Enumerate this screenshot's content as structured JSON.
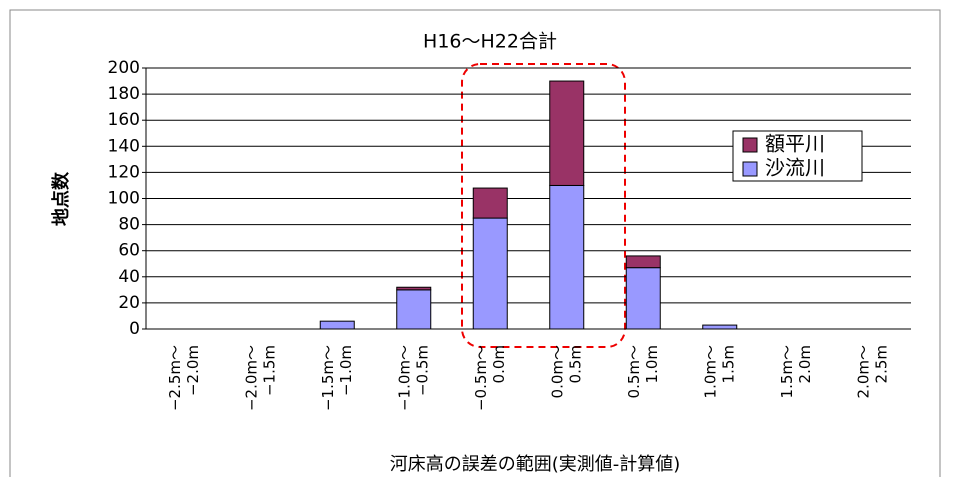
{
  "chart_data": {
    "type": "stacked_bar",
    "title": "H16～H22合計",
    "y_label": "地点数",
    "x_label": "河床高の誤差の範囲(実測値-計算値)",
    "categories": [
      [
        "−2.5m～",
        "−2.0m"
      ],
      [
        "−2.0m～",
        "−1.5m"
      ],
      [
        "−1.5m～",
        "−1.0m"
      ],
      [
        "−1.0m～",
        "−0.5m"
      ],
      [
        "−0.5m～",
        "0.0m"
      ],
      [
        "0.0m～",
        "0.5m"
      ],
      [
        "0.5m～",
        "1.0m"
      ],
      [
        "1.0m～",
        "1.5m"
      ],
      [
        "1.5m～",
        "2.0m"
      ],
      [
        "2.0m～",
        "2.5m"
      ]
    ],
    "series": [
      {
        "name": "沙流川",
        "color": "#9999ff",
        "values": [
          0,
          0,
          6,
          30,
          85,
          110,
          47,
          3,
          0,
          0
        ]
      },
      {
        "name": "額平川",
        "color": "#993366",
        "values": [
          0,
          0,
          0,
          2,
          23,
          80,
          9,
          0,
          0,
          0
        ]
      }
    ],
    "ylim": [
      0,
      200
    ],
    "yticks": [
      0,
      20,
      40,
      60,
      80,
      100,
      120,
      140,
      160,
      180,
      200
    ],
    "grid": true
  }
}
